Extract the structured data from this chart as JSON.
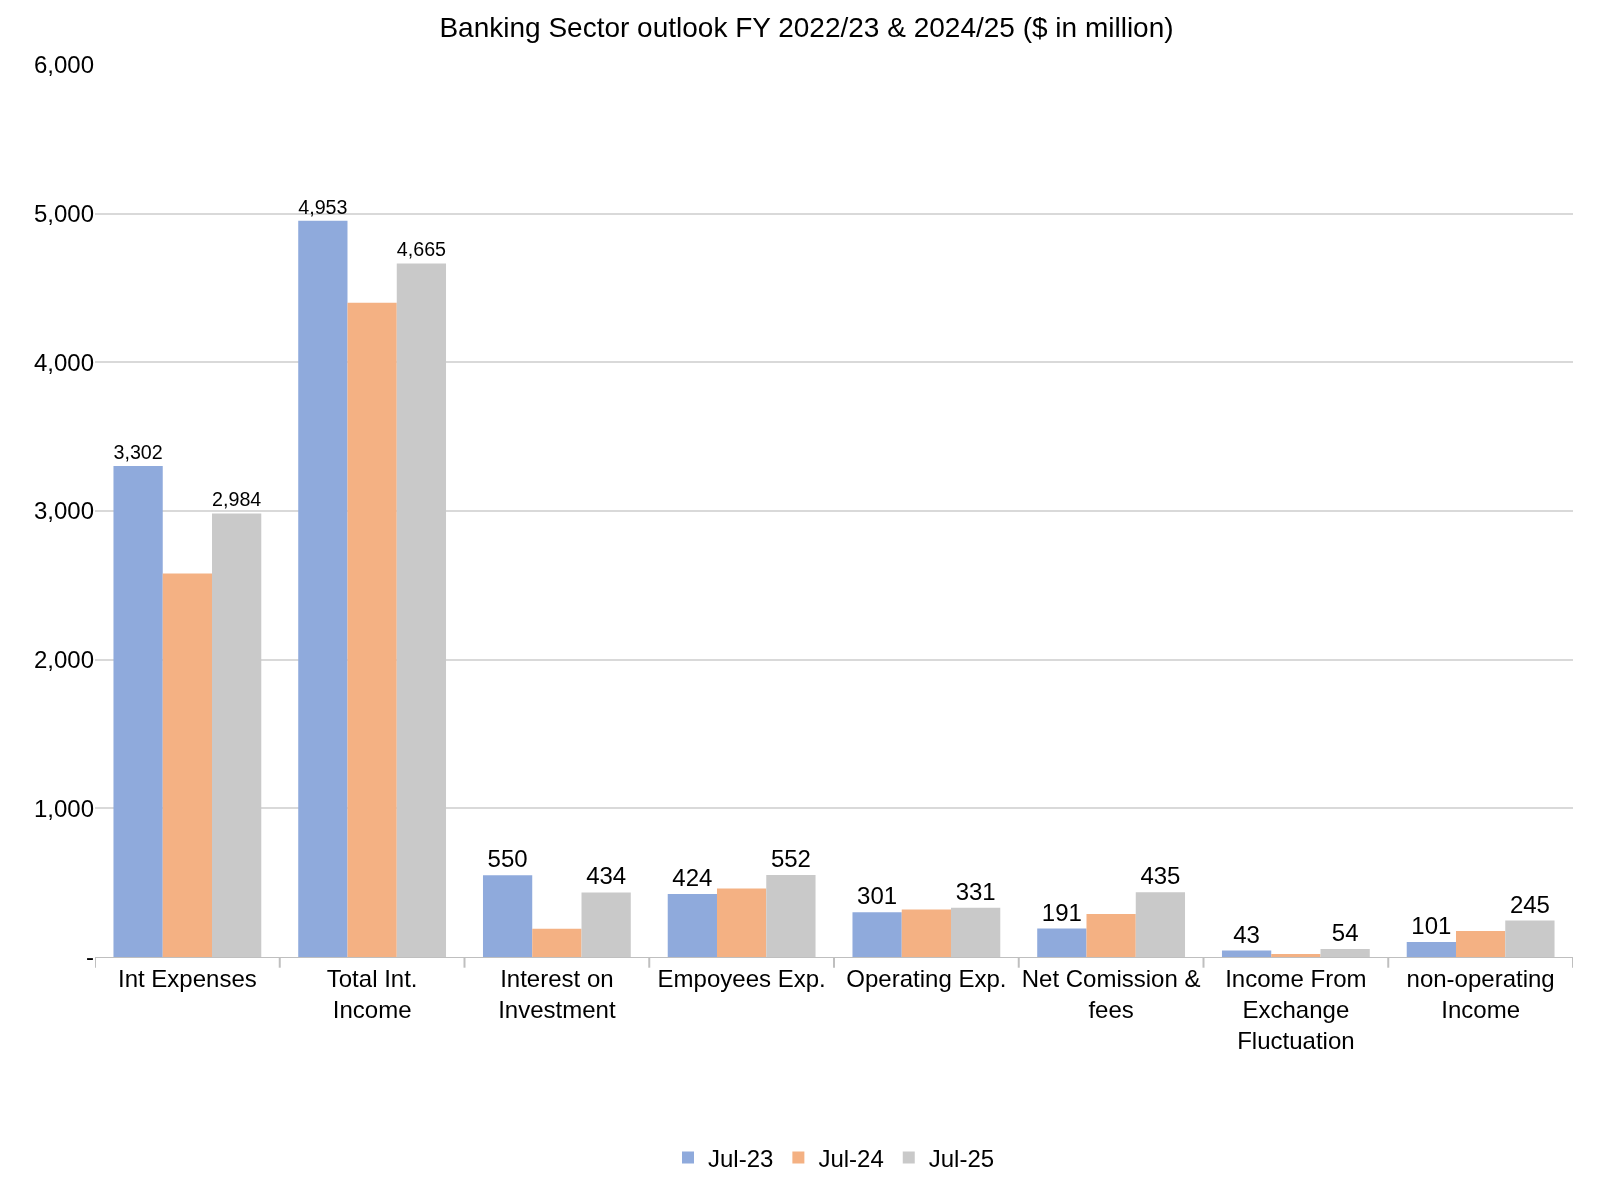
{
  "chart_data": {
    "type": "bar",
    "title": "Banking Sector outlook FY 2022/23 & 2024/25 ($ in million)",
    "categories": [
      "Int Expenses",
      "Total Int. Income",
      "Interest on Investment",
      "Empoyees Exp.",
      "Operating Exp.",
      "Net Comission & fees",
      "Income From Exchange Fluctuation",
      "non-operating Income"
    ],
    "series": [
      {
        "name": "Jul-23",
        "color": "#8faadc",
        "values": [
          3302,
          4953,
          550,
          424,
          301,
          191,
          43,
          101
        ],
        "value_labels": [
          "3,302",
          "4,953",
          "550",
          "424",
          "301",
          "191",
          "43",
          "101"
        ]
      },
      {
        "name": "Jul-24",
        "color": "#f4b183",
        "values": [
          2580,
          4400,
          190,
          460,
          320,
          290,
          20,
          175
        ]
      },
      {
        "name": "Jul-25",
        "color": "#c9c9c9",
        "values": [
          2984,
          4665,
          434,
          552,
          331,
          435,
          54,
          245
        ],
        "value_labels": [
          "2,984",
          "4,665",
          "434",
          "552",
          "331",
          "435",
          "54",
          "245"
        ]
      }
    ],
    "ylim": [
      0,
      6000
    ],
    "yticks": [
      {
        "value": 0,
        "label": "-"
      },
      {
        "value": 1000,
        "label": "1,000"
      },
      {
        "value": 2000,
        "label": "2,000"
      },
      {
        "value": 3000,
        "label": "3,000"
      },
      {
        "value": 4000,
        "label": "4,000"
      },
      {
        "value": 5000,
        "label": "5,000"
      },
      {
        "value": 6000,
        "label": "6,000"
      }
    ],
    "grid": "y",
    "legend": "bottom"
  }
}
